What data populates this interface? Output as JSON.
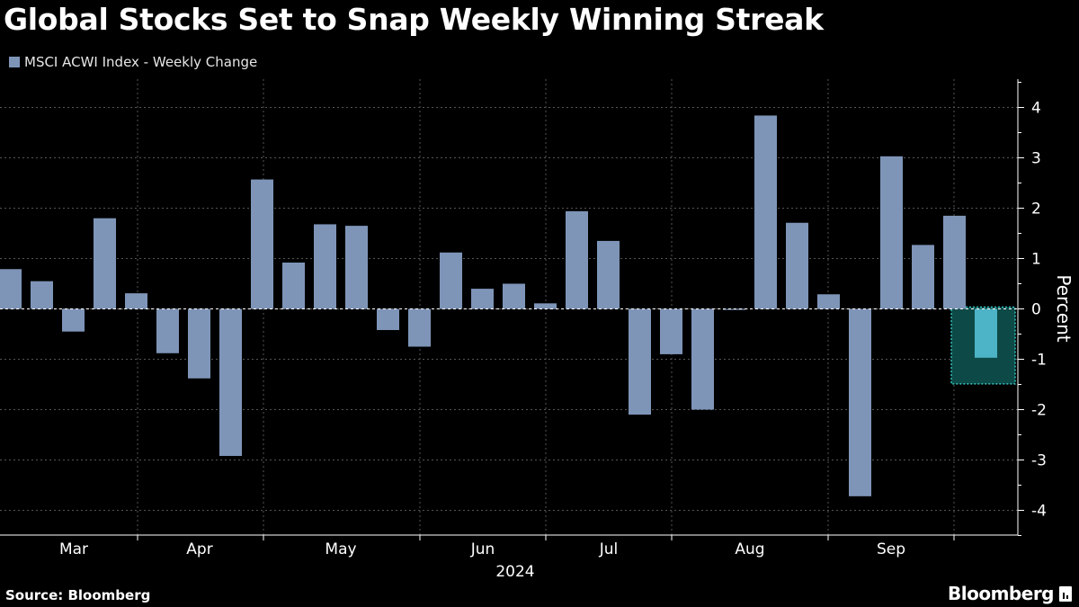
{
  "title": "Global Stocks Set to Snap Weekly Winning Streak",
  "source": "Source: Bloomberg",
  "brand": "Bloomberg",
  "colors": {
    "bar": "#7e95b8",
    "highlight_bar": "#4db3c6",
    "highlight_box": "#0d4a47",
    "highlight_border": "#37c2c2",
    "grid": "#555555",
    "text": "#ffffff"
  },
  "chart_data": {
    "type": "bar",
    "title": "Global Stocks Set to Snap Weekly Winning Streak",
    "legend": [
      "MSCI ACWI Index - Weekly Change"
    ],
    "ylabel": "Percent",
    "xlabel": "2024",
    "ylim": [
      -4.5,
      4.5
    ],
    "yticks": [
      4,
      3,
      2,
      1,
      0,
      -1,
      -2,
      -3,
      -4
    ],
    "month_labels": [
      "Mar",
      "Apr",
      "May",
      "Jun",
      "Jul",
      "Aug",
      "Sep"
    ],
    "year_label": "2024",
    "series": [
      {
        "name": "MSCI ACWI Index - Weekly Change",
        "values": [
          0.79,
          0.55,
          -0.45,
          1.8,
          0.31,
          -0.88,
          -1.38,
          -2.92,
          2.57,
          0.92,
          1.68,
          1.65,
          -0.42,
          -0.75,
          1.12,
          0.4,
          0.5,
          0.11,
          1.94,
          1.35,
          -2.1,
          -0.9,
          -2.0,
          -0.02,
          3.84,
          1.71,
          0.29,
          -3.72,
          3.03,
          1.27,
          1.85,
          -0.97
        ]
      }
    ],
    "highlight_index": 31
  }
}
